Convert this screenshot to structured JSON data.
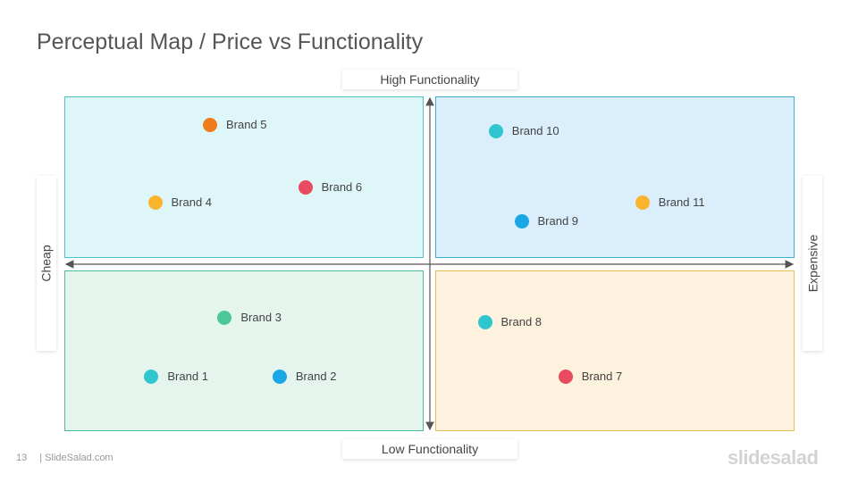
{
  "title": "Perceptual Map / Price vs Functionality",
  "axes": {
    "top": "High Functionality",
    "bottom": "Low Functionality",
    "left": "Cheap",
    "right": "Expensive"
  },
  "colors": {
    "orange": "#f07c1b",
    "red": "#e84a5f",
    "yellow": "#fbb42d",
    "teal": "#2fc6cf",
    "blue": "#1ba6e6",
    "green": "#4cc79a"
  },
  "chart_data": {
    "type": "scatter",
    "xlabel_left": "Cheap",
    "xlabel_right": "Expensive",
    "ylabel_top": "High Functionality",
    "ylabel_bottom": "Low Functionality",
    "xlim": [
      -10,
      10
    ],
    "ylim": [
      -10,
      10
    ],
    "points": [
      {
        "label": "Brand  1",
        "x": -7.6,
        "y": -6.8,
        "color": "#2fc6cf"
      },
      {
        "label": "Brand  2",
        "x": -4.1,
        "y": -6.8,
        "color": "#1ba6e6"
      },
      {
        "label": "Brand  3",
        "x": -5.6,
        "y": -3.2,
        "color": "#4cc79a"
      },
      {
        "label": "Brand  4",
        "x": -7.5,
        "y": 3.7,
        "color": "#fbb42d"
      },
      {
        "label": "Brand  5",
        "x": -6.0,
        "y": 8.4,
        "color": "#f07c1b"
      },
      {
        "label": "Brand  6",
        "x": -3.4,
        "y": 4.6,
        "color": "#e84a5f"
      },
      {
        "label": "Brand  7",
        "x": 3.7,
        "y": -6.8,
        "color": "#e84a5f"
      },
      {
        "label": "Brand  8",
        "x": 1.5,
        "y": -3.5,
        "color": "#2fc6cf"
      },
      {
        "label": "Brand  9",
        "x": 2.5,
        "y": 2.6,
        "color": "#1ba6e6"
      },
      {
        "label": "Brand  10",
        "x": 1.8,
        "y": 8.0,
        "color": "#2fc6cf"
      },
      {
        "label": "Brand  11",
        "x": 5.8,
        "y": 3.7,
        "color": "#fbb42d"
      }
    ]
  },
  "footer": {
    "page_number": "13",
    "site": "| SlideSalad.com"
  },
  "logo": "slidesalad"
}
